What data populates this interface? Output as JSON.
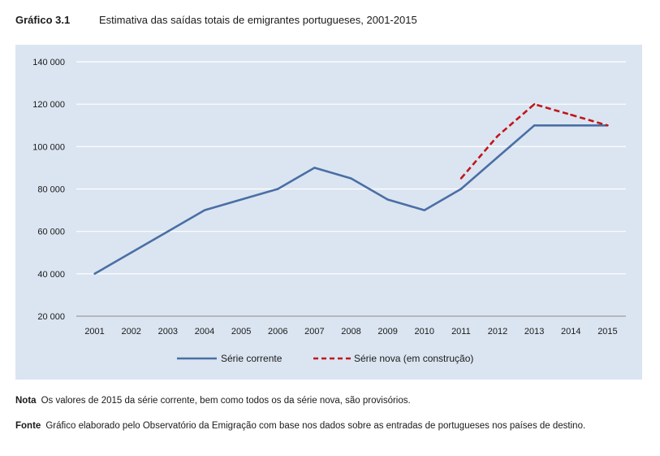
{
  "header": {
    "label": "Gráfico 3.1",
    "title": "Estimativa das saídas totais de emigrantes portugueses, 2001-2015"
  },
  "colors": {
    "panel_bg": "#dbe5f1",
    "series_current": "#4a6fa5",
    "series_new": "#c0161c",
    "grid": "#ffffff",
    "axis": "#8c8c8c"
  },
  "chart_data": {
    "type": "line",
    "title": "Estimativa das saídas totais de emigrantes portugueses, 2001-2015",
    "xlabel": "",
    "ylabel": "",
    "categories": [
      "2001",
      "2002",
      "2003",
      "2004",
      "2005",
      "2006",
      "2007",
      "2008",
      "2009",
      "2010",
      "2011",
      "2012",
      "2013",
      "2014",
      "2015"
    ],
    "ylim": [
      20000,
      140000
    ],
    "yticks": [
      20000,
      40000,
      60000,
      80000,
      100000,
      120000,
      140000
    ],
    "ytick_labels": [
      "20 000",
      "40 000",
      "60 000",
      "80 000",
      "100 000",
      "120 000",
      "140 000"
    ],
    "grid": true,
    "legend_position": "bottom-center",
    "series": [
      {
        "name": "Série corrente",
        "style": "solid",
        "values": [
          40000,
          50000,
          60000,
          70000,
          75000,
          80000,
          90000,
          85000,
          75000,
          70000,
          80000,
          95000,
          110000,
          110000,
          110000
        ]
      },
      {
        "name": "Série nova (em construção)",
        "style": "dashed",
        "values": [
          null,
          null,
          null,
          null,
          null,
          null,
          null,
          null,
          null,
          null,
          85000,
          105000,
          120000,
          115000,
          110000
        ]
      }
    ]
  },
  "notes": {
    "nota_label": "Nota",
    "nota_text": "Os valores de 2015 da série corrente, bem como todos os da série nova, são provisórios.",
    "fonte_label": "Fonte",
    "fonte_text": "Gráfico elaborado pelo Observatório da Emigração com base nos dados sobre as entradas de portugueses nos países de destino."
  }
}
